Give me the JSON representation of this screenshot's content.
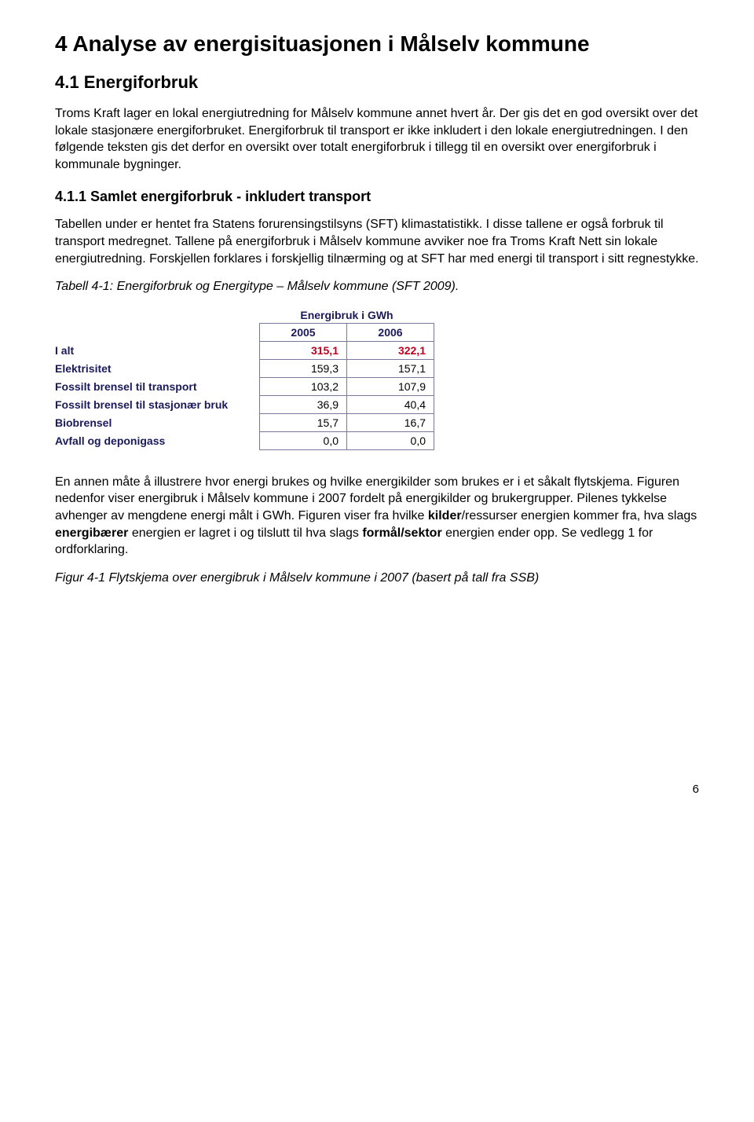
{
  "h1": "4  Analyse av energisituasjonen i Målselv kommune",
  "h2": "4.1  Energiforbruk",
  "p1": "Troms Kraft lager en lokal energiutredning for Målselv kommune annet hvert år. Der gis det en god oversikt over det lokale stasjonære energiforbruket. Energiforbruk til transport er ikke inkludert i den lokale energiutredningen. I den følgende teksten gis det derfor en oversikt over totalt energiforbruk i tillegg til en oversikt over energiforbruk i kommunale bygninger.",
  "h3": "4.1.1  Samlet energiforbruk - inkludert transport",
  "p2": "Tabellen under er hentet fra Statens forurensingstilsyns (SFT) klimastatistikk. I disse tallene er også forbruk til transport medregnet. Tallene på energiforbruk i Målselv kommune avviker noe fra Troms Kraft Nett sin lokale energiutredning. Forskjellen forklares i forskjellig tilnærming og at SFT har med energi til transport i sitt regnestykke.",
  "tableCaption": "Tabell 4-1: Energiforbruk og Energitype – Målselv kommune (SFT 2009).",
  "table": {
    "title": "Energibruk i GWh",
    "years": [
      "2005",
      "2006"
    ],
    "rows": [
      {
        "label": "I alt",
        "vals": [
          "315,1",
          "322,1"
        ],
        "total": true
      },
      {
        "label": "Elektrisitet",
        "vals": [
          "159,3",
          "157,1"
        ],
        "total": false
      },
      {
        "label": "Fossilt brensel til transport",
        "vals": [
          "103,2",
          "107,9"
        ],
        "total": false
      },
      {
        "label": "Fossilt brensel til stasjonær bruk",
        "vals": [
          "36,9",
          "40,4"
        ],
        "total": false
      },
      {
        "label": "Biobrensel",
        "vals": [
          "15,7",
          "16,7"
        ],
        "total": false
      },
      {
        "label": "Avfall og deponigass",
        "vals": [
          "0,0",
          "0,0"
        ],
        "total": false
      }
    ]
  },
  "p3a": "En annen måte å illustrere hvor energi brukes og hvilke energikilder som brukes er i et såkalt flytskjema. Figuren nedenfor viser energibruk i Målselv kommune i 2007 fordelt på energikilder og brukergrupper. Pilenes tykkelse avhenger av mengdene energi målt i GWh. Figuren viser fra hvilke ",
  "p3b": "kilder",
  "p3c": "/ressurser energien kommer fra, hva slags ",
  "p3d": "energibærer",
  "p3e": " energien er lagret i og tilslutt til hva slags ",
  "p3f": "formål/sektor",
  "p3g": " energien ender opp. Se vedlegg 1 for ordforklaring.",
  "figCaption": "Figur 4-1 Flytskjema over energibruk i Målselv kommune i 2007 (basert på tall fra SSB)",
  "pageNum": "6"
}
